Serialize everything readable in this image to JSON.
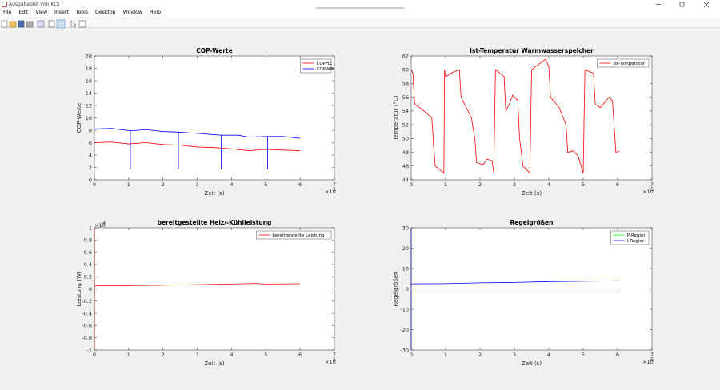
{
  "window": {
    "title": "Ausgabeplot von KLS",
    "menu": [
      "File",
      "Edit",
      "View",
      "Insert",
      "Tools",
      "Desktop",
      "Window",
      "Help"
    ]
  },
  "chart_data": [
    {
      "type": "line",
      "title": "COP-Werte",
      "xlabel": "Zeit (s)",
      "ylabel": "COP-Werte",
      "x_multiplier": "×10",
      "x_exponent": "5",
      "xlim": [
        0,
        700000
      ],
      "xticks": [
        0,
        {
          "value": 100000,
          "label": "1"
        },
        {
          "value": 200000,
          "label": "2"
        },
        {
          "value": 300000,
          "label": "3"
        },
        {
          "value": 400000,
          "label": "4"
        },
        {
          "value": 500000,
          "label": "5"
        },
        {
          "value": 600000,
          "label": "6"
        },
        {
          "value": 700000,
          "label": "7"
        }
      ],
      "ylim": [
        0,
        20
      ],
      "yticks": [
        0,
        2,
        4,
        6,
        8,
        10,
        12,
        14,
        16,
        18,
        20
      ],
      "legend": "northeast",
      "series": [
        {
          "name": "COPHZ",
          "color": "#ff0000",
          "x": [
            0,
            50000,
            100000,
            150000,
            200000,
            250000,
            300000,
            350000,
            400000,
            450000,
            500000,
            550000,
            600000
          ],
          "values": [
            6.0,
            6.1,
            5.8,
            6.0,
            5.7,
            5.6,
            5.3,
            5.2,
            5.0,
            4.7,
            4.9,
            4.8,
            4.7
          ]
        },
        {
          "name": "COPWW",
          "color": "#0000ff",
          "x": [
            0,
            50000,
            105000,
            105000,
            105000,
            150000,
            200000,
            245000,
            245000,
            245000,
            300000,
            370000,
            370000,
            370000,
            420000,
            450000,
            505000,
            505000,
            505000,
            550000,
            600000
          ],
          "values": [
            8.2,
            8.3,
            7.9,
            1.7,
            7.9,
            8.1,
            7.8,
            7.7,
            1.7,
            7.7,
            7.5,
            7.2,
            1.7,
            7.2,
            7.2,
            6.9,
            7.0,
            1.7,
            7.0,
            7.0,
            6.7
          ]
        }
      ]
    },
    {
      "type": "line",
      "title": "Ist-Temperatur Warmwasserspeicher",
      "xlabel": "Zeit (s)",
      "ylabel": "Temperatur (°C)",
      "x_multiplier": "×10",
      "x_exponent": "5",
      "xlim": [
        0,
        700000
      ],
      "xticks": [
        0,
        {
          "value": 100000,
          "label": "1"
        },
        {
          "value": 200000,
          "label": "2"
        },
        {
          "value": 300000,
          "label": "3"
        },
        {
          "value": 400000,
          "label": "4"
        },
        {
          "value": 500000,
          "label": "5"
        },
        {
          "value": 600000,
          "label": "6"
        },
        {
          "value": 700000,
          "label": "7"
        }
      ],
      "ylim": [
        44,
        62
      ],
      "yticks": [
        44,
        46,
        48,
        50,
        52,
        54,
        56,
        58,
        60,
        62
      ],
      "legend": "northeast",
      "series": [
        {
          "name": "Ist-Temperatur",
          "color": "#ff0000",
          "x": [
            0,
            5000,
            10000,
            30000,
            60000,
            65000,
            70000,
            95000,
            97000,
            100000,
            120000,
            140000,
            145000,
            160000,
            175000,
            185000,
            190000,
            210000,
            220000,
            235000,
            240000,
            245000,
            270000,
            275000,
            285000,
            295000,
            310000,
            315000,
            325000,
            345000,
            350000,
            390000,
            400000,
            405000,
            430000,
            450000,
            455000,
            470000,
            485000,
            500000,
            505000,
            530000,
            535000,
            550000,
            575000,
            585000,
            595000,
            605000
          ],
          "values": [
            60,
            59.5,
            55,
            54.3,
            53,
            49,
            46,
            45,
            60,
            59,
            59.6,
            60,
            56,
            54.5,
            53,
            50,
            46.5,
            46.2,
            47,
            46.8,
            45,
            60,
            59,
            54,
            55,
            56.3,
            55.5,
            50,
            46,
            45,
            60,
            61.5,
            60.5,
            56,
            54.5,
            52,
            48,
            48.2,
            47.5,
            45,
            60,
            59.5,
            55,
            54.5,
            56,
            55.5,
            48,
            48.2
          ]
        }
      ]
    },
    {
      "type": "line",
      "title": "bereitgestellte Heiz/-Kühlleistung",
      "xlabel": "Zeit (s)",
      "ylabel": "Leistung (W)",
      "x_multiplier": "×10",
      "x_exponent": "5",
      "y_multiplier": "×10",
      "y_exponent": "4",
      "xlim": [
        0,
        700000
      ],
      "xticks": [
        0,
        {
          "value": 100000,
          "label": "1"
        },
        {
          "value": 200000,
          "label": "2"
        },
        {
          "value": 300000,
          "label": "3"
        },
        {
          "value": 400000,
          "label": "4"
        },
        {
          "value": 500000,
          "label": "5"
        },
        {
          "value": 600000,
          "label": "6"
        },
        {
          "value": 700000,
          "label": "7"
        }
      ],
      "ylim": [
        -10000,
        10000
      ],
      "yticks": [
        {
          "value": -10000,
          "label": "-1"
        },
        {
          "value": -8000,
          "label": "-0.8"
        },
        {
          "value": -6000,
          "label": "-0.6"
        },
        {
          "value": -4000,
          "label": "-0.4"
        },
        {
          "value": -2000,
          "label": "-0.2"
        },
        0,
        {
          "value": 2000,
          "label": "0.2"
        },
        {
          "value": 4000,
          "label": "0.4"
        },
        {
          "value": 6000,
          "label": "0.6"
        },
        {
          "value": 8000,
          "label": "0.8"
        },
        {
          "value": 10000,
          "label": "1"
        }
      ],
      "legend": "northeast",
      "series": [
        {
          "name": "bereitgestellte Leistung",
          "color": "#ff0000",
          "x": [
            0,
            0,
            0,
            100000,
            200000,
            300000,
            400000,
            470000,
            500000,
            600000
          ],
          "values": [
            10000,
            -10000,
            500,
            550,
            600,
            700,
            800,
            900,
            800,
            850
          ]
        }
      ]
    },
    {
      "type": "line",
      "title": "Regelgrößen",
      "xlabel": "Zeit (s)",
      "ylabel": "Regelgrößen",
      "x_multiplier": "×10",
      "x_exponent": "5",
      "xlim": [
        0,
        700000
      ],
      "xticks": [
        0,
        {
          "value": 100000,
          "label": "1"
        },
        {
          "value": 200000,
          "label": "2"
        },
        {
          "value": 300000,
          "label": "3"
        },
        {
          "value": 400000,
          "label": "4"
        },
        {
          "value": 500000,
          "label": "5"
        },
        {
          "value": 600000,
          "label": "6"
        },
        {
          "value": 700000,
          "label": "7"
        }
      ],
      "ylim": [
        -30,
        30
      ],
      "yticks": [
        -30,
        -20,
        -10,
        0,
        10,
        20,
        30
      ],
      "legend": "northeast",
      "series": [
        {
          "name": "P-Regler",
          "color": "#00ff00",
          "x": [
            0,
            100000,
            200000,
            300000,
            400000,
            500000,
            605000
          ],
          "values": [
            0,
            0,
            0,
            0,
            0,
            0,
            0
          ]
        },
        {
          "name": "I-Regler",
          "color": "#0000ff",
          "x": [
            0,
            0,
            0,
            100000,
            200000,
            300000,
            400000,
            500000,
            605000
          ],
          "values": [
            30,
            -30,
            2.5,
            2.6,
            3.0,
            3.2,
            3.6,
            3.8,
            4.0
          ]
        }
      ]
    }
  ]
}
